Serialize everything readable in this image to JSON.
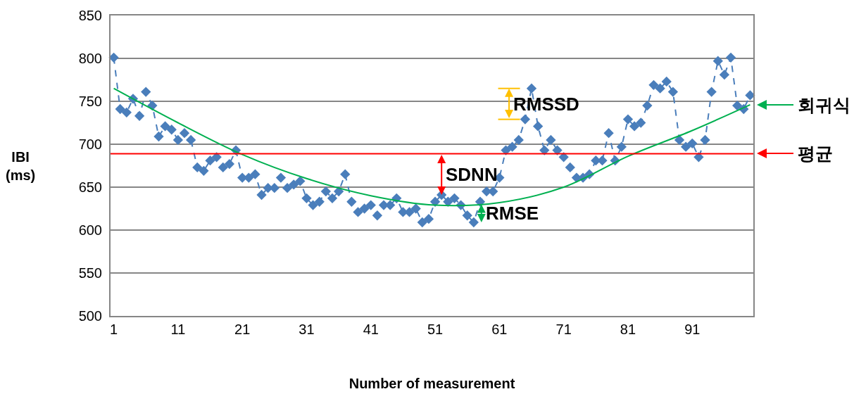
{
  "chart_data": {
    "type": "line",
    "xlabel": "Number of measurement",
    "ylabel": "IBI (ms)",
    "xlim": [
      0.5,
      100.5
    ],
    "xticks": [
      1,
      11,
      21,
      31,
      41,
      51,
      61,
      71,
      81,
      91
    ],
    "ylim": [
      500,
      850
    ],
    "yticks": [
      500,
      550,
      600,
      650,
      700,
      750,
      800,
      850
    ],
    "grid": "y",
    "series": [
      {
        "type": "line",
        "color": "#4a7ebb",
        "marker": "diamond",
        "line_style": "dashed",
        "x": [
          1,
          2,
          3,
          4,
          5,
          6,
          7,
          8,
          9,
          10,
          11,
          12,
          13,
          14,
          15,
          16,
          17,
          18,
          19,
          20,
          21,
          22,
          23,
          24,
          25,
          26,
          27,
          28,
          29,
          30,
          31,
          32,
          33,
          34,
          35,
          36,
          37,
          38,
          39,
          40,
          41,
          42,
          43,
          44,
          45,
          46,
          47,
          48,
          49,
          50,
          51,
          52,
          53,
          54,
          55,
          56,
          57,
          58,
          59,
          60,
          61,
          62,
          63,
          64,
          65,
          66,
          67,
          68,
          69,
          70,
          71,
          72,
          73,
          74,
          75,
          76,
          77,
          78,
          79,
          80,
          81,
          82,
          83,
          84,
          85,
          86,
          87,
          88,
          89,
          90,
          91,
          92,
          93,
          94,
          95,
          96,
          97,
          98,
          99,
          100
        ],
        "values": [
          801,
          741,
          737,
          753,
          733,
          761,
          745,
          709,
          721,
          717,
          705,
          713,
          705,
          673,
          669,
          681,
          685,
          673,
          677,
          693,
          661,
          661,
          665,
          641,
          649,
          649,
          661,
          649,
          653,
          657,
          637,
          629,
          633,
          645,
          637,
          645,
          665,
          633,
          621,
          625,
          629,
          617,
          629,
          629,
          637,
          621,
          621,
          625,
          609,
          613,
          633,
          641,
          633,
          637,
          629,
          617,
          609,
          633,
          645,
          645,
          661,
          693,
          697,
          705,
          729,
          765,
          721,
          693,
          705,
          693,
          685,
          673,
          661,
          661,
          665,
          681,
          681,
          713,
          681,
          697,
          729,
          721,
          725,
          745,
          769,
          765,
          773,
          761,
          705,
          697,
          701,
          685,
          705,
          761,
          797,
          781,
          801,
          745,
          741,
          757
        ]
      },
      {
        "type": "line",
        "color": "#00b050",
        "marker": "none",
        "line_style": "solid",
        "x": [
          1,
          11,
          21,
          31,
          41,
          51,
          61,
          71,
          81,
          91,
          100
        ],
        "values": [
          765,
          725,
          688,
          660,
          640,
          629,
          632,
          650,
          686,
          716,
          746
        ]
      }
    ],
    "ref_lines": [
      {
        "axis": "y",
        "value": 689,
        "color": "#ff0000",
        "line_style": "solid"
      }
    ],
    "annotations": [
      {
        "text": "RMSSD",
        "x": 66,
        "y": 765
      },
      {
        "text": "SDNN",
        "x": 52,
        "y": 641
      },
      {
        "text": "RMSE",
        "x": 57,
        "y": 609
      },
      {
        "text": "회귀식",
        "x": 100,
        "y": 746
      },
      {
        "text": "평균",
        "x": 100,
        "y": 689
      }
    ]
  }
}
